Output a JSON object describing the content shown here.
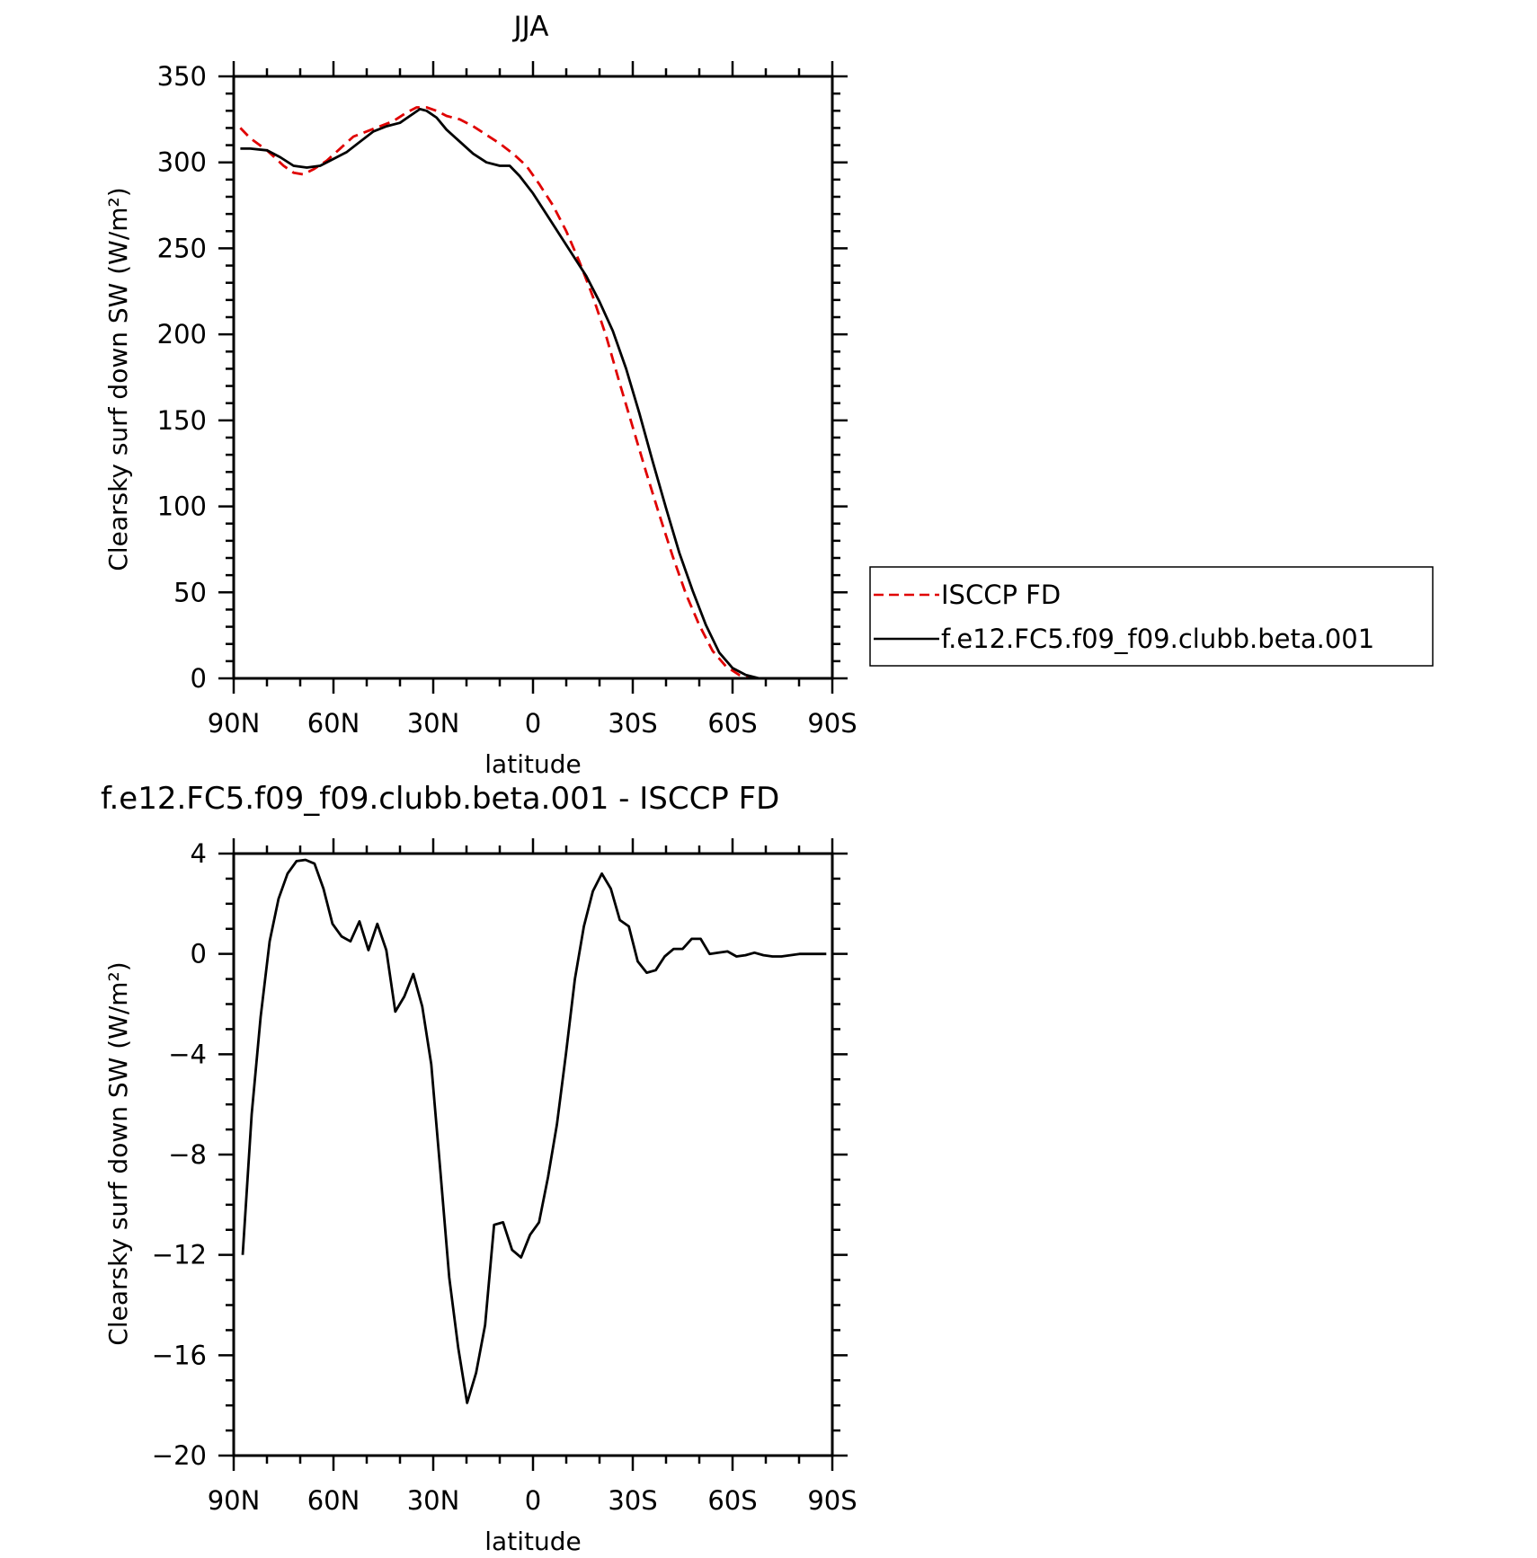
{
  "figure_titles": {
    "top": "JJA",
    "bottom": "f.e12.FC5.f09_f09.clubb.beta.001 - ISCCP FD"
  },
  "chart_data": [
    {
      "type": "line",
      "title": "JJA",
      "xlabel": "latitude",
      "ylabel": "Clearsky surf down SW (W/m²)",
      "xlim": [
        -90,
        90
      ],
      "ylim": [
        0,
        350
      ],
      "x_tick_values": [
        -90,
        -60,
        -30,
        0,
        30,
        60,
        90
      ],
      "x_tick_labels": [
        "90N",
        "60N",
        "30N",
        "0",
        "30S",
        "60S",
        "90S"
      ],
      "y_ticks": [
        0,
        50,
        100,
        150,
        200,
        250,
        300,
        350
      ],
      "grid": false,
      "legend_position": "right, outside plot",
      "x_note": "x values: degrees latitude, negative = North (left), positive = South (right)",
      "series": [
        {
          "name": "ISCCP FD",
          "color": "#e00000",
          "dash": "dashed",
          "points": [
            [
              -88,
              320
            ],
            [
              -85,
              314
            ],
            [
              -80,
              307
            ],
            [
              -75,
              298
            ],
            [
              -72,
              294
            ],
            [
              -69,
              293
            ],
            [
              -66,
              296
            ],
            [
              -62,
              301
            ],
            [
              -58,
              308
            ],
            [
              -54,
              315
            ],
            [
              -50,
              318
            ],
            [
              -46,
              321
            ],
            [
              -42,
              324
            ],
            [
              -38,
              329
            ],
            [
              -35,
              332
            ],
            [
              -32,
              332
            ],
            [
              -29,
              330
            ],
            [
              -26,
              327
            ],
            [
              -22,
              325
            ],
            [
              -18,
              321
            ],
            [
              -14,
              316
            ],
            [
              -10,
              311
            ],
            [
              -6,
              305
            ],
            [
              -2,
              298
            ],
            [
              2,
              287
            ],
            [
              6,
              275
            ],
            [
              10,
              260
            ],
            [
              14,
              242
            ],
            [
              18,
              222
            ],
            [
              22,
              199
            ],
            [
              26,
              172
            ],
            [
              30,
              146
            ],
            [
              34,
              120
            ],
            [
              38,
              95
            ],
            [
              42,
              71
            ],
            [
              46,
              49
            ],
            [
              50,
              31
            ],
            [
              54,
              16
            ],
            [
              58,
              7
            ],
            [
              62,
              2
            ],
            [
              66,
              0
            ],
            [
              70,
              0
            ],
            [
              75,
              0
            ],
            [
              80,
              0
            ],
            [
              85,
              0
            ],
            [
              88,
              0
            ]
          ]
        },
        {
          "name": "f.e12.FC5.f09_f09.clubb.beta.001",
          "color": "#000000",
          "dash": "solid",
          "points": [
            [
              -88,
              308
            ],
            [
              -85,
              308
            ],
            [
              -80,
              307
            ],
            [
              -76,
              303
            ],
            [
              -72,
              298
            ],
            [
              -68,
              297
            ],
            [
              -64,
              298
            ],
            [
              -60,
              302
            ],
            [
              -56,
              306
            ],
            [
              -52,
              312
            ],
            [
              -48,
              318
            ],
            [
              -44,
              321
            ],
            [
              -40,
              323
            ],
            [
              -37,
              327
            ],
            [
              -34,
              331
            ],
            [
              -32,
              330
            ],
            [
              -29,
              326
            ],
            [
              -26,
              319
            ],
            [
              -22,
              312
            ],
            [
              -18,
              305
            ],
            [
              -14,
              300
            ],
            [
              -10,
              298
            ],
            [
              -7,
              298
            ],
            [
              -4,
              292
            ],
            [
              0,
              282
            ],
            [
              4,
              270
            ],
            [
              8,
              258
            ],
            [
              12,
              246
            ],
            [
              16,
              234
            ],
            [
              20,
              219
            ],
            [
              24,
              202
            ],
            [
              28,
              180
            ],
            [
              32,
              154
            ],
            [
              36,
              126
            ],
            [
              40,
              99
            ],
            [
              44,
              73
            ],
            [
              48,
              51
            ],
            [
              52,
              31
            ],
            [
              56,
              15
            ],
            [
              60,
              6
            ],
            [
              64,
              2
            ],
            [
              68,
              0
            ],
            [
              72,
              0
            ],
            [
              76,
              0
            ],
            [
              80,
              0
            ],
            [
              84,
              0
            ],
            [
              88,
              0
            ]
          ]
        }
      ]
    },
    {
      "type": "line",
      "title": "f.e12.FC5.f09_f09.clubb.beta.001 - ISCCP FD",
      "xlabel": "latitude",
      "ylabel": "Clearsky surf down SW (W/m²)",
      "xlim": [
        -90,
        90
      ],
      "ylim": [
        -20,
        4
      ],
      "x_tick_values": [
        -90,
        -60,
        -30,
        0,
        30,
        60,
        90
      ],
      "x_tick_labels": [
        "90N",
        "60N",
        "30N",
        "0",
        "30S",
        "60S",
        "90S"
      ],
      "y_ticks": [
        -20,
        -16,
        -12,
        -8,
        -4,
        0,
        4
      ],
      "y_tick_labels": [
        "−20",
        "−16",
        "−12",
        "−8",
        "−4",
        "0",
        "4"
      ],
      "grid": false,
      "x_note": "x values: degrees latitude, negative = North (left), positive = South (right)",
      "series": [
        {
          "color": "#000000",
          "dash": "solid",
          "points": [
            [
              -87.3,
              -12
            ],
            [
              -84.6,
              -6.4
            ],
            [
              -81.9,
              -2.5
            ],
            [
              -79.2,
              0.5
            ],
            [
              -76.5,
              2.2
            ],
            [
              -73.8,
              3.2
            ],
            [
              -71.1,
              3.7
            ],
            [
              -68.4,
              3.75
            ],
            [
              -65.7,
              3.6
            ],
            [
              -63,
              2.6
            ],
            [
              -60.3,
              1.2
            ],
            [
              -57.6,
              0.7
            ],
            [
              -54.9,
              0.5
            ],
            [
              -52.2,
              1.3
            ],
            [
              -49.5,
              0.15
            ],
            [
              -46.8,
              1.2
            ],
            [
              -44.1,
              0.15
            ],
            [
              -41.4,
              -2.3
            ],
            [
              -38.7,
              -1.7
            ],
            [
              -36,
              -0.8
            ],
            [
              -33.3,
              -2.1
            ],
            [
              -30.6,
              -4.4
            ],
            [
              -27.9,
              -8.6
            ],
            [
              -25.2,
              -12.9
            ],
            [
              -22.5,
              -15.7
            ],
            [
              -19.8,
              -17.9
            ],
            [
              -17.1,
              -16.7
            ],
            [
              -14.4,
              -14.8
            ],
            [
              -11.7,
              -10.8
            ],
            [
              -9,
              -10.7
            ],
            [
              -6.3,
              -11.8
            ],
            [
              -3.6,
              -12.1
            ],
            [
              -0.9,
              -11.2
            ],
            [
              1.8,
              -10.7
            ],
            [
              4.5,
              -8.9
            ],
            [
              7.2,
              -6.8
            ],
            [
              9.9,
              -4
            ],
            [
              12.6,
              -1
            ],
            [
              15.3,
              1.1
            ],
            [
              18,
              2.5
            ],
            [
              20.7,
              3.2
            ],
            [
              23.4,
              2.6
            ],
            [
              26.1,
              1.35
            ],
            [
              28.8,
              1.1
            ],
            [
              31.5,
              -0.3
            ],
            [
              34.2,
              -0.75
            ],
            [
              36.9,
              -0.65
            ],
            [
              39.6,
              -0.1
            ],
            [
              42.3,
              0.2
            ],
            [
              45,
              0.2
            ],
            [
              47.7,
              0.6
            ],
            [
              50.4,
              0.6
            ],
            [
              53.1,
              0
            ],
            [
              55.8,
              0.05
            ],
            [
              58.5,
              0.1
            ],
            [
              61.2,
              -0.1
            ],
            [
              63.9,
              -0.05
            ],
            [
              66.6,
              0.05
            ],
            [
              69.3,
              -0.05
            ],
            [
              72,
              -0.1
            ],
            [
              74.7,
              -0.1
            ],
            [
              77.4,
              -0.05
            ],
            [
              80.1,
              0
            ],
            [
              82.8,
              0
            ],
            [
              85.5,
              0
            ],
            [
              88.2,
              0
            ]
          ]
        }
      ]
    }
  ]
}
